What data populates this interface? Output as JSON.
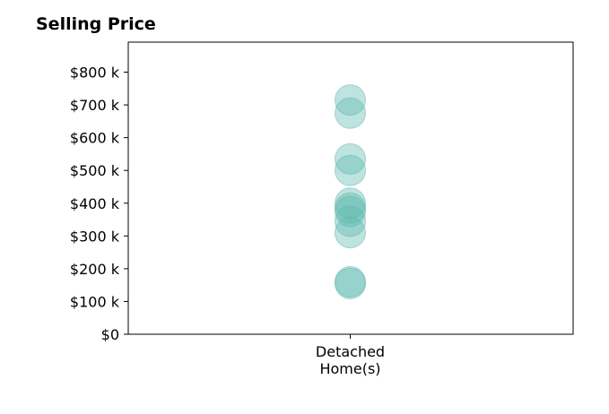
{
  "chart_data": {
    "type": "scatter",
    "title": "Selling Price",
    "xlabel": "",
    "ylabel": "",
    "categories": [
      "Detached\nHome(s)"
    ],
    "ylim": [
      0,
      900000
    ],
    "yticks": [
      0,
      100000,
      200000,
      300000,
      400000,
      500000,
      600000,
      700000,
      800000
    ],
    "ytick_labels": [
      "$0",
      "$100 k",
      "$200 k",
      "$300 k",
      "$400 k",
      "$500 k",
      "$600 k",
      "$700 k",
      "$800 k"
    ],
    "series": [
      {
        "category": "Detached\nHome(s)",
        "values": [
          715000,
          675000,
          535000,
          500000,
          400000,
          385000,
          375000,
          345000,
          310000,
          160000,
          155000
        ]
      }
    ],
    "grid": false,
    "legend": "none",
    "marker_color": "#5eb8ae",
    "marker_alpha": 0.4
  }
}
